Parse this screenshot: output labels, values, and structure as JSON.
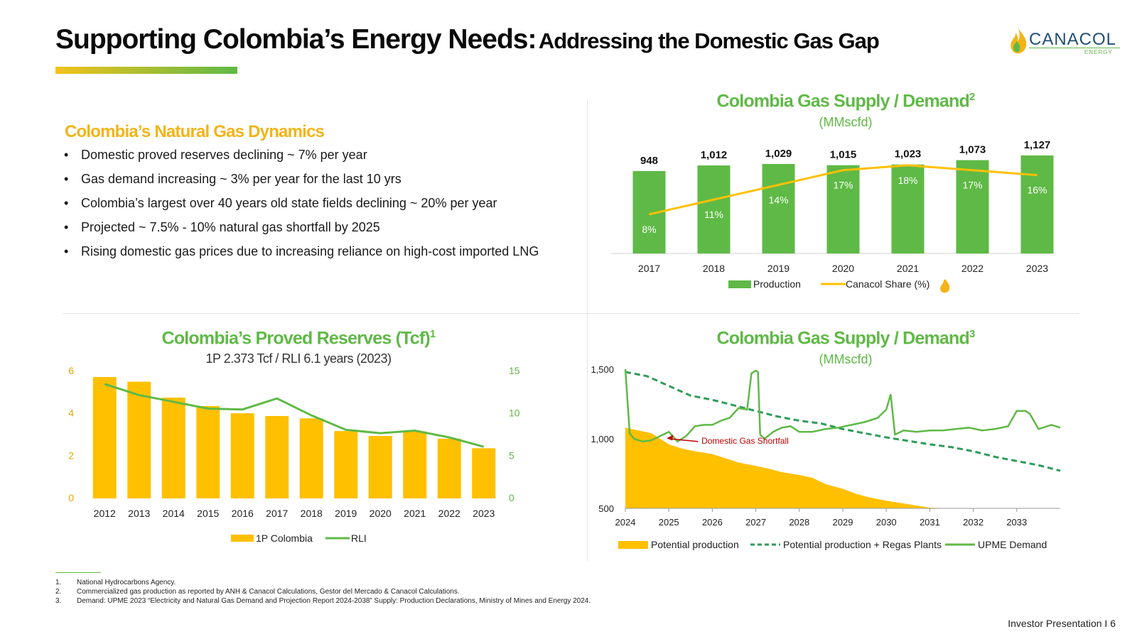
{
  "header": {
    "title_main": "Supporting Colombia’s Energy Needs:",
    "title_sub": "Addressing the Domestic Gas Gap",
    "logo_text": "CANACOL",
    "logo_sub": "ENERGY"
  },
  "dynamics": {
    "heading": "Colombia’s Natural Gas Dynamics",
    "bullets": [
      "Domestic proved reserves declining ~ 7% per year",
      "Gas demand increasing ~ 3% per year for the last 10 yrs",
      "Colombia’s largest over 40 years old state fields declining ~ 20% per year",
      "Projected ~ 7.5% - 10% natural gas shortfall by 2025",
      "Rising domestic gas prices due to increasing reliance on  high-cost  imported LNG"
    ]
  },
  "chart_titles": {
    "supply_demand_1": "Colombia Gas Supply / Demand",
    "supply_demand_1_sup": "2",
    "supply_demand_1_unit": "(MMscfd)",
    "reserves": "Colombia’s Proved Reserves (Tcf)",
    "reserves_sup": "1",
    "reserves_sub": "1P 2.373 Tcf / RLI 6.1 years (2023)",
    "supply_demand_2": "Colombia Gas Supply / Demand",
    "supply_demand_2_sup": "3",
    "supply_demand_2_unit": "(MMscfd)"
  },
  "chart_data": [
    {
      "id": "production",
      "type": "bar",
      "categories": [
        "2017",
        "2018",
        "2019",
        "2020",
        "2021",
        "2022",
        "2023"
      ],
      "series": [
        {
          "name": "Production",
          "values": [
            948,
            1012,
            1029,
            1015,
            1023,
            1073,
            1127
          ],
          "labels": [
            "948",
            "1,012",
            "1,029",
            "1,015",
            "1,023",
            "1,073",
            "1,127"
          ],
          "color": "#5fb946"
        },
        {
          "name": "Canacol Share (%)",
          "type": "line",
          "values": [
            8,
            11,
            14,
            17,
            18,
            17,
            16
          ],
          "labels": [
            "8%",
            "11%",
            "14%",
            "17%",
            "18%",
            "17%",
            "16%"
          ],
          "color": "#ffc000"
        }
      ],
      "ylim": [
        0,
        1200
      ],
      "share_ylim": [
        0,
        30
      ]
    },
    {
      "id": "reserves",
      "type": "bar",
      "categories": [
        "2012",
        "2013",
        "2014",
        "2015",
        "2016",
        "2017",
        "2018",
        "2019",
        "2020",
        "2021",
        "2022",
        "2023"
      ],
      "series": [
        {
          "name": "1P Colombia",
          "values": [
            5.73,
            5.51,
            4.76,
            4.36,
            4.02,
            3.89,
            3.78,
            3.18,
            2.95,
            3.16,
            2.82,
            2.37
          ],
          "color": "#ffc000",
          "axis": "left"
        },
        {
          "name": "RLI",
          "type": "line",
          "values": [
            13.5,
            12.2,
            11.4,
            10.6,
            10.5,
            11.8,
            9.8,
            8.1,
            7.7,
            8.0,
            7.2,
            6.1
          ],
          "color": "#5fb946",
          "axis": "right"
        }
      ],
      "left_ticks": [
        0,
        2,
        4,
        6
      ],
      "right_ticks": [
        0,
        5,
        10,
        15
      ],
      "left_ylim": [
        0,
        6
      ],
      "right_ylim": [
        0,
        15
      ]
    },
    {
      "id": "supply_demand",
      "type": "area",
      "x_ticks": [
        "2024",
        "2025",
        "2026",
        "2027",
        "2028",
        "2029",
        "2030",
        "2031",
        "2032",
        "2033"
      ],
      "y_ticks": [
        500,
        1000,
        1500
      ],
      "y_tick_labels": [
        "500",
        "1,000",
        "1,500"
      ],
      "ylim": [
        500,
        1500
      ],
      "annotation": "Domestic Gas Shortfall",
      "series": [
        {
          "name": "Potential production",
          "type": "area",
          "color": "#ffc000",
          "x": [
            2024,
            2024.3,
            2024.6,
            2025,
            2025.3,
            2025.6,
            2026,
            2026.3,
            2026.6,
            2027,
            2027.3,
            2027.6,
            2028,
            2028.3,
            2028.6,
            2029,
            2029.3,
            2029.6,
            2030,
            2030.3,
            2030.6,
            2031,
            2031.5,
            2032,
            2033,
            2034
          ],
          "y": [
            1080,
            1060,
            1040,
            960,
            930,
            910,
            890,
            860,
            830,
            805,
            785,
            760,
            740,
            720,
            675,
            640,
            605,
            580,
            555,
            540,
            525,
            505,
            500,
            500,
            500,
            500
          ]
        },
        {
          "name": "Potential production + Regas Plants",
          "type": "line",
          "dash": "dashed",
          "color": "#2e9c5a",
          "x": [
            2024,
            2024.5,
            2025,
            2025.5,
            2026,
            2026.5,
            2027,
            2027.5,
            2028,
            2028.5,
            2029,
            2029.5,
            2030,
            2030.5,
            2031,
            2031.5,
            2032,
            2032.5,
            2033,
            2033.5,
            2034
          ],
          "y": [
            1480,
            1450,
            1380,
            1310,
            1280,
            1240,
            1200,
            1160,
            1130,
            1110,
            1070,
            1040,
            1010,
            985,
            960,
            940,
            910,
            870,
            840,
            810,
            770
          ]
        },
        {
          "name": "UPME Demand",
          "type": "line",
          "color": "#5fb946",
          "x": [
            2024,
            2024.1,
            2024.2,
            2024.4,
            2024.6,
            2024.8,
            2025,
            2025.2,
            2025.4,
            2025.6,
            2025.8,
            2026,
            2026.2,
            2026.4,
            2026.6,
            2026.8,
            2026.9,
            2027,
            2027.05,
            2027.1,
            2027.2,
            2027.4,
            2027.6,
            2027.8,
            2028,
            2028.3,
            2028.6,
            2028.9,
            2029.2,
            2029.5,
            2029.8,
            2030,
            2030.1,
            2030.2,
            2030.4,
            2030.7,
            2031,
            2031.3,
            2031.6,
            2031.9,
            2032.2,
            2032.5,
            2032.8,
            2033,
            2033.2,
            2033.3,
            2033.5,
            2033.8,
            2034
          ],
          "y": [
            1500,
            1040,
            1000,
            980,
            990,
            1020,
            1050,
            980,
            1020,
            1090,
            1100,
            1100,
            1130,
            1150,
            1220,
            1210,
            1470,
            1490,
            1480,
            1030,
            1000,
            1050,
            1080,
            1090,
            1050,
            1050,
            1070,
            1080,
            1100,
            1120,
            1150,
            1210,
            1320,
            1030,
            1060,
            1050,
            1060,
            1060,
            1070,
            1080,
            1060,
            1070,
            1090,
            1200,
            1200,
            1180,
            1070,
            1100,
            1080
          ]
        }
      ]
    }
  ],
  "legends": {
    "production": "Production",
    "share": "Canacol Share (%)",
    "reserves_bar": "1P Colombia",
    "reserves_line": "RLI",
    "sd_area": "Potential production",
    "sd_dashed": "Potential production + Regas Plants",
    "sd_demand": "UPME Demand"
  },
  "footnotes": [
    {
      "n": "1.",
      "text": "National Hydrocarbons Agency."
    },
    {
      "n": "2.",
      "text": "Commercialized gas production as reported by ANH & Canacol Calculations, Gestor del Mercado & Canacol Calculations."
    },
    {
      "n": "3.",
      "text": "Demand: UPME 2023 “Electricity and Natural Gas Demand and Projection Report 2024-2038” Supply: Production Declarations, Ministry of Mines and Energy 2024."
    }
  ],
  "footer": "Investor Presentation  I  6",
  "colors": {
    "green": "#5fb946",
    "yellow": "#ffc000",
    "dark_green": "#2e9c5a",
    "navy": "#1f4e79",
    "red": "#c00000"
  }
}
